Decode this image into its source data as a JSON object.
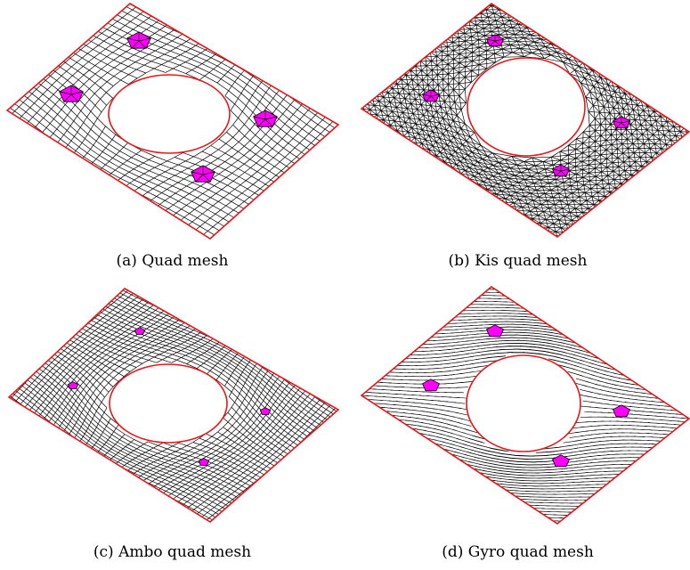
{
  "colors": {
    "boundary": "#e8161a",
    "edge": "#000000",
    "highlight": "#ff00ff",
    "background": "#ffffff"
  },
  "panels": [
    {
      "id": "a",
      "caption": "(a) Quad mesh",
      "style": "quad"
    },
    {
      "id": "b",
      "caption": "(b) Kis quad mesh",
      "style": "kis"
    },
    {
      "id": "c",
      "caption": "(c) Ambo quad mesh",
      "style": "ambo"
    },
    {
      "id": "d",
      "caption": "(d) Gyro quad mesh",
      "style": "gyro"
    }
  ]
}
